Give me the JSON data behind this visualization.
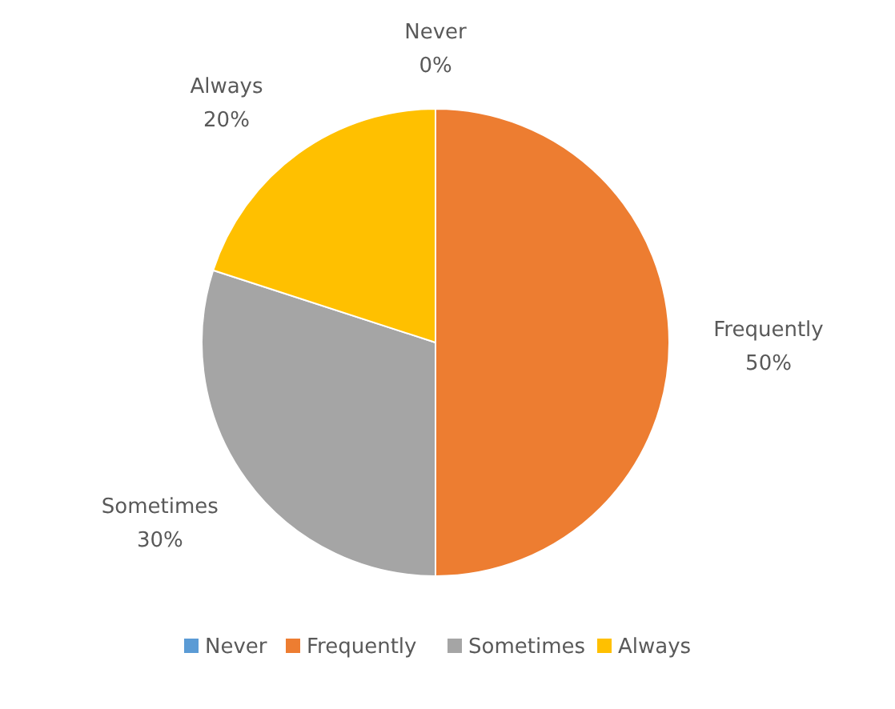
{
  "chart_data": {
    "type": "pie",
    "categories": [
      "Never",
      "Frequently",
      "Sometimes",
      "Always"
    ],
    "values": [
      0,
      50,
      30,
      20
    ],
    "colors": [
      "#5b9bd5",
      "#ed7d31",
      "#a5a5a5",
      "#ffc000"
    ],
    "value_labels": [
      "0%",
      "50%",
      "30%",
      "20%"
    ],
    "legend": "bottom"
  }
}
